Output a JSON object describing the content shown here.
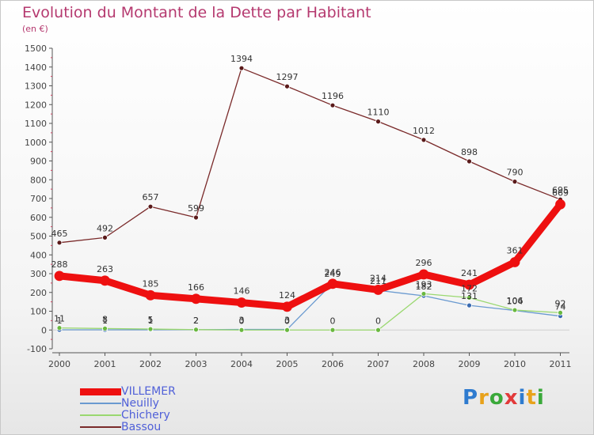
{
  "header": {
    "title": "Evolution du Montant de la Dette par Habitant",
    "subtitle": "(en €)"
  },
  "colors": {
    "title": "#b5396f",
    "axis": "#555555",
    "legend_text": "#5060d8"
  },
  "logo": {
    "text": "Proxiti",
    "letters": [
      "P",
      "r",
      "o",
      "x",
      "i",
      "t",
      "i"
    ],
    "colors": [
      "#2e7bcf",
      "#e8a21b",
      "#3aa93a",
      "#e23a3a",
      "#2e7bcf",
      "#e8a21b",
      "#3aa93a"
    ]
  },
  "chart_data": {
    "type": "line",
    "title": "Evolution du Montant de la Dette par Habitant",
    "subtitle": "(en €)",
    "xlabel": "",
    "ylabel": "",
    "ylim": [
      -100,
      1500
    ],
    "ytick_step": 100,
    "grid": false,
    "legend_position": "bottom-left",
    "categories": [
      "2000",
      "2001",
      "2002",
      "2003",
      "2004",
      "2005",
      "2006",
      "2007",
      "2008",
      "2009",
      "2010",
      "2011"
    ],
    "series": [
      {
        "name": "Bassou",
        "color": "#7a2a2a",
        "marker": "#5a1a1a",
        "width": 1.3,
        "values": [
          465,
          492,
          657,
          599,
          1394,
          1297,
          1196,
          1110,
          1012,
          898,
          790,
          695
        ],
        "labels": [
          "465",
          "492",
          "657",
          "599",
          "1394",
          "1297",
          "1196",
          "1110",
          "1012",
          "898",
          "790",
          "695"
        ]
      },
      {
        "name": "Neuilly",
        "color": "#6a9ad0",
        "marker": "#3a6ab0",
        "width": 1.3,
        "values": [
          1,
          1,
          1,
          2,
          3,
          3,
          249,
          211,
          182,
          131,
          104,
          74
        ],
        "labels": [
          "1",
          "1",
          "1",
          "2",
          "3",
          "3",
          "249",
          "211",
          "182",
          "131",
          "104",
          "74"
        ]
      },
      {
        "name": "Chichery",
        "color": "#9ad870",
        "marker": "#6ab840",
        "width": 1.3,
        "values": [
          11,
          8,
          5,
          2,
          0,
          0,
          0,
          0,
          193,
          172,
          106,
          92
        ],
        "labels": [
          "11",
          "8",
          "5",
          "2",
          "0",
          "0",
          "0",
          "0",
          "193",
          "172",
          "106",
          "92"
        ]
      },
      {
        "name": "VILLEMER",
        "color": "#ee1010",
        "marker": "#ee1010",
        "width": 9,
        "values": [
          288,
          263,
          185,
          166,
          146,
          124,
          246,
          214,
          296,
          241,
          361,
          669
        ],
        "labels": [
          "288",
          "263",
          "185",
          "166",
          "146",
          "124",
          "246",
          "214",
          "296",
          "241",
          "361",
          "669"
        ]
      }
    ],
    "legend": [
      {
        "name": "VILLEMER",
        "color": "#ee1010",
        "thickness": 9
      },
      {
        "name": "Neuilly",
        "color": "#6a9ad0",
        "thickness": 2
      },
      {
        "name": "Chichery",
        "color": "#9ad870",
        "thickness": 2
      },
      {
        "name": "Bassou",
        "color": "#7a2a2a",
        "thickness": 2
      }
    ]
  }
}
